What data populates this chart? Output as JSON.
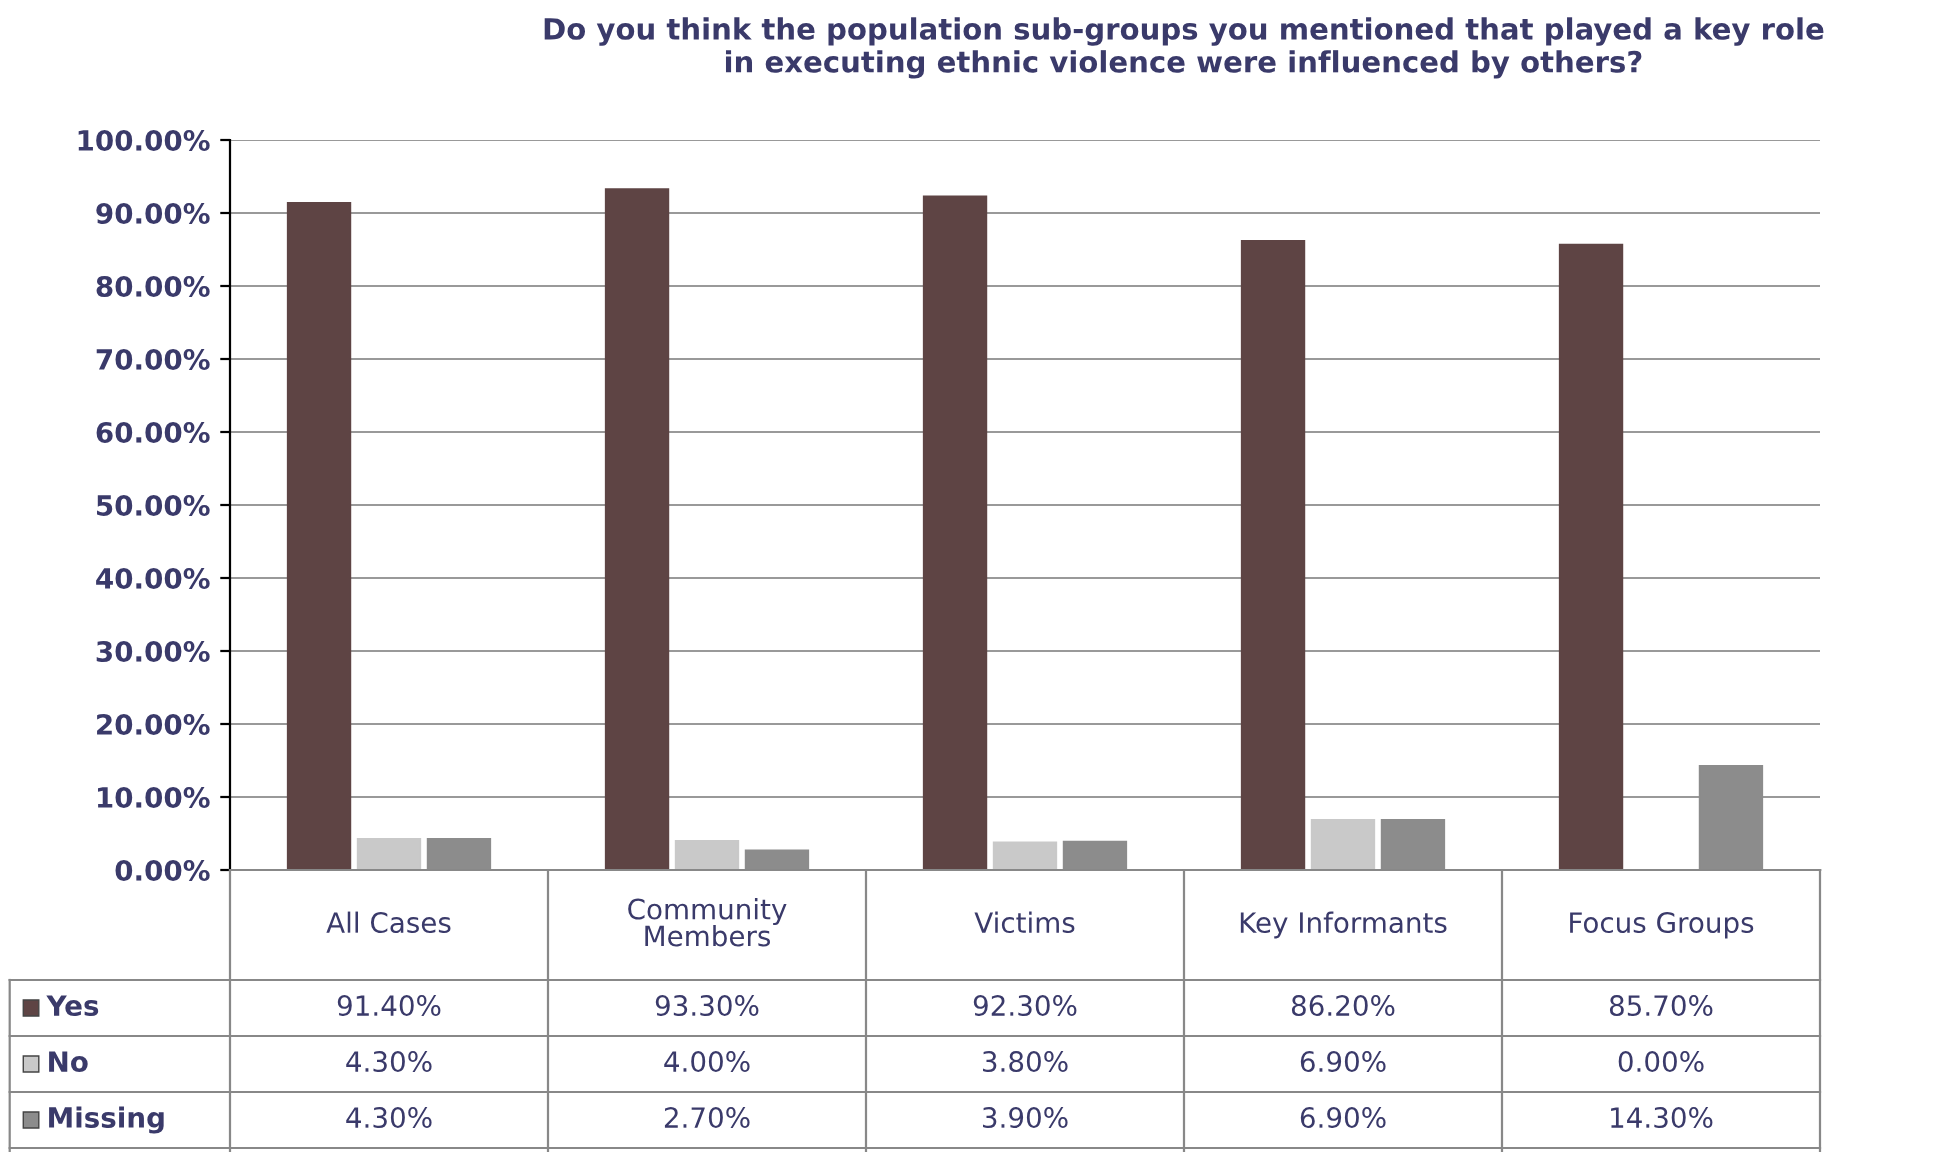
{
  "chart_data": {
    "type": "bar",
    "title": "Do you think the population sub-groups you mentioned that played a key role\nin executing ethnic violence were influenced by others?",
    "categories": [
      "All Cases",
      "Community\nMembers",
      "Victims",
      "Key Informants",
      "Focus Groups"
    ],
    "series": [
      {
        "name": "Yes",
        "color": "#5e4444",
        "values": [
          91.4,
          93.3,
          92.3,
          86.2,
          85.7
        ],
        "value_labels": [
          "91.40%",
          "93.30%",
          "92.30%",
          "86.20%",
          "85.70%"
        ]
      },
      {
        "name": "No",
        "color": "#c9c9c9",
        "values": [
          4.3,
          4.0,
          3.8,
          6.9,
          0.0
        ],
        "value_labels": [
          "4.30%",
          "4.00%",
          "3.80%",
          "6.90%",
          "0.00%"
        ]
      },
      {
        "name": "Missing",
        "color": "#8c8c8c",
        "values": [
          4.3,
          2.7,
          3.9,
          6.9,
          14.3
        ],
        "value_labels": [
          "4.30%",
          "2.70%",
          "3.90%",
          "6.90%",
          "14.30%"
        ]
      }
    ],
    "ylim": [
      0,
      100
    ],
    "yticks": [
      {
        "value": 0,
        "label": "0.00%"
      },
      {
        "value": 10,
        "label": "10.00%"
      },
      {
        "value": 20,
        "label": "20.00%"
      },
      {
        "value": 30,
        "label": "30.00%"
      },
      {
        "value": 40,
        "label": "40.00%"
      },
      {
        "value": 50,
        "label": "50.00%"
      },
      {
        "value": 60,
        "label": "60.00%"
      },
      {
        "value": 70,
        "label": "70.00%"
      },
      {
        "value": 80,
        "label": "80.00%"
      },
      {
        "value": 90,
        "label": "90.00%"
      },
      {
        "value": 100,
        "label": "100.00%"
      }
    ],
    "grid": "y",
    "legend": "bottom left"
  }
}
